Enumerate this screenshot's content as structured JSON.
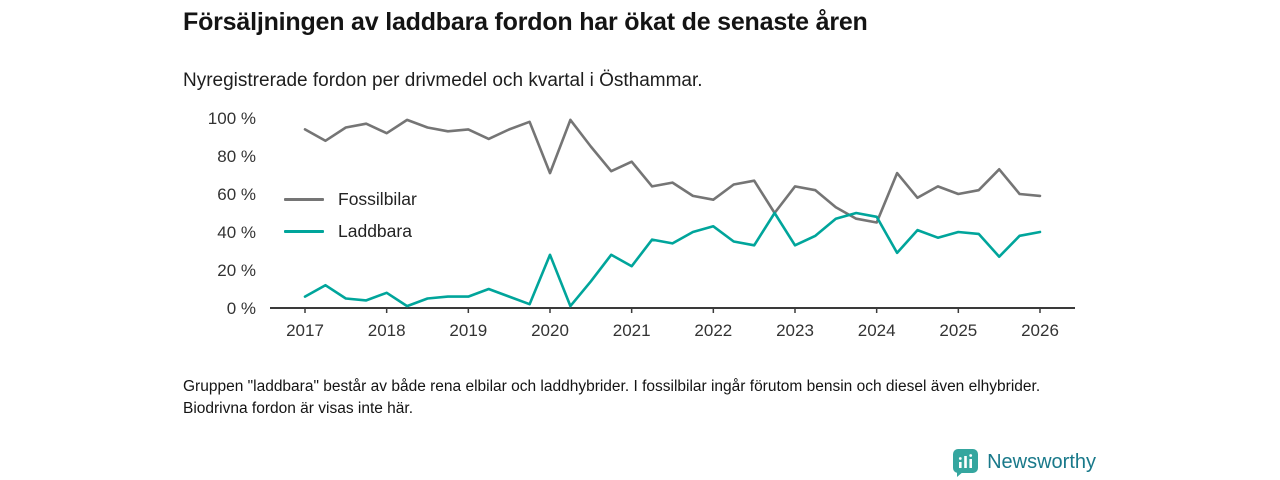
{
  "header": {
    "title": "Försäljningen av laddbara fordon har ökat de senaste åren",
    "subtitle": "Nyregistrerade fordon per drivmedel och kvartal i Östhammar."
  },
  "chart_data": {
    "type": "line",
    "title": "Försäljningen av laddbara fordon har ökat de senaste åren",
    "subtitle": "Nyregistrerade fordon per drivmedel och kvartal i Östhammar.",
    "x_unit": "quarter",
    "x_start": "2017 Q1",
    "x_end": "2026 Q1",
    "x_ticks": [
      2017,
      2018,
      2019,
      2020,
      2021,
      2022,
      2023,
      2024,
      2025,
      2026
    ],
    "y_ticks": [
      0,
      20,
      40,
      60,
      80,
      100
    ],
    "y_tick_suffix": " %",
    "ylim": [
      0,
      100
    ],
    "grid": false,
    "legend_position": "inside-left",
    "series": [
      {
        "name": "Fossilbilar",
        "color": "#757575",
        "values": [
          94,
          88,
          95,
          97,
          92,
          99,
          95,
          93,
          94,
          89,
          94,
          98,
          71,
          99,
          85,
          72,
          77,
          64,
          66,
          59,
          57,
          65,
          67,
          50,
          64,
          62,
          53,
          47,
          45,
          71,
          58,
          64,
          60,
          62,
          73,
          60,
          59
        ]
      },
      {
        "name": "Laddbara",
        "color": "#00a59b",
        "values": [
          6,
          12,
          5,
          4,
          8,
          1,
          5,
          6,
          6,
          10,
          6,
          2,
          28,
          1,
          14,
          28,
          22,
          36,
          34,
          40,
          43,
          35,
          33,
          50,
          33,
          38,
          47,
          50,
          48,
          29,
          41,
          37,
          40,
          39,
          27,
          38,
          40
        ]
      }
    ]
  },
  "footnote": "Gruppen \"laddbara\" består av både rena elbilar och laddhybrider. I fossilbilar ingår förutom bensin och diesel även elhybrider. Biodrivna fordon är visas inte här.",
  "brand": {
    "name": "Newsworthy",
    "text_color": "#19798a",
    "icon_color": "#35a69f"
  }
}
